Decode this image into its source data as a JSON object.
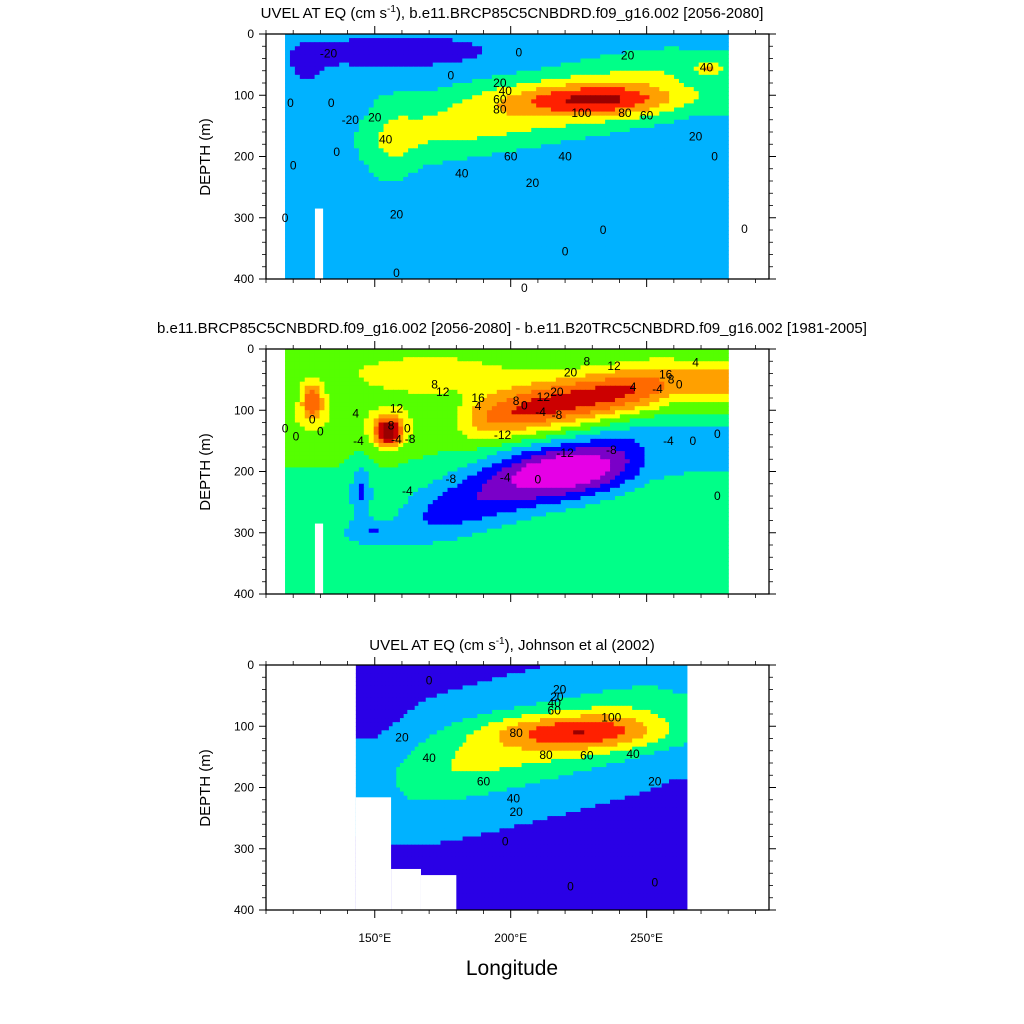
{
  "figure": {
    "xlabel": "Longitude",
    "ylabel": "DEPTH (m)",
    "xticks": [
      150,
      200,
      250
    ],
    "xtick_labels": [
      "150°E",
      "200°E",
      "250°E"
    ],
    "yticks": [
      0,
      100,
      200,
      300,
      400
    ],
    "ytick_labels": [
      "0",
      "100",
      "200",
      "300",
      "400"
    ]
  },
  "chart_data": [
    {
      "type": "heatmap",
      "id": "panel-model",
      "title_parts": [
        "UVEL AT EQ (cm s",
        "-1",
        "), b.e11.BRCP85C5CNBDRD.f09_g16.002 [2056-2080]"
      ],
      "xlabel": "",
      "ylabel": "DEPTH (m)",
      "xlim": [
        110,
        295
      ],
      "ylim": [
        400,
        0
      ],
      "data_xlim": [
        117,
        280
      ],
      "levels": [
        -20,
        0,
        20,
        40,
        60,
        80,
        100
      ],
      "features": [
        {
          "kind": "background",
          "value": 8
        },
        {
          "kind": "blob",
          "x": 210,
          "y": 230,
          "sx": 60,
          "sy": 80,
          "amp": -4
        },
        {
          "kind": "blob",
          "x": 160,
          "y": 30,
          "sx": 40,
          "sy": 30,
          "amp": -16
        },
        {
          "kind": "blob",
          "x": 125,
          "y": 60,
          "sx": 8,
          "sy": 40,
          "amp": -8
        },
        {
          "kind": "jet",
          "x0": 148,
          "y0": 175,
          "x1": 265,
          "y1": 75,
          "thick": 58,
          "amp": 46
        },
        {
          "kind": "blob",
          "x": 232,
          "y": 108,
          "sx": 30,
          "sy": 25,
          "amp": 55
        },
        {
          "kind": "blob",
          "x": 155,
          "y": 175,
          "sx": 10,
          "sy": 80,
          "amp": 20
        },
        {
          "kind": "blob",
          "x": 273,
          "y": 55,
          "sx": 4,
          "sy": 10,
          "amp": 40
        }
      ],
      "contour_labels": [
        {
          "x": 133,
          "y": 32,
          "t": "-20"
        },
        {
          "x": 203,
          "y": 30,
          "t": "0"
        },
        {
          "x": 243,
          "y": 35,
          "t": "20"
        },
        {
          "x": 178,
          "y": 68,
          "t": "0"
        },
        {
          "x": 196,
          "y": 80,
          "t": "20"
        },
        {
          "x": 198,
          "y": 93,
          "t": "40"
        },
        {
          "x": 196,
          "y": 107,
          "t": "60"
        },
        {
          "x": 196,
          "y": 123,
          "t": "80"
        },
        {
          "x": 226,
          "y": 129,
          "t": "100"
        },
        {
          "x": 242,
          "y": 129,
          "t": "80"
        },
        {
          "x": 250,
          "y": 133,
          "t": "60"
        },
        {
          "x": 119,
          "y": 113,
          "t": "0"
        },
        {
          "x": 134,
          "y": 113,
          "t": "0"
        },
        {
          "x": 141,
          "y": 140,
          "t": "-20"
        },
        {
          "x": 150,
          "y": 136,
          "t": "20"
        },
        {
          "x": 154,
          "y": 172,
          "t": "40"
        },
        {
          "x": 136,
          "y": 193,
          "t": "0"
        },
        {
          "x": 200,
          "y": 200,
          "t": "60"
        },
        {
          "x": 220,
          "y": 200,
          "t": "40"
        },
        {
          "x": 182,
          "y": 228,
          "t": "40"
        },
        {
          "x": 208,
          "y": 243,
          "t": "20"
        },
        {
          "x": 268,
          "y": 167,
          "t": "20"
        },
        {
          "x": 275,
          "y": 200,
          "t": "0"
        },
        {
          "x": 120,
          "y": 215,
          "t": "0"
        },
        {
          "x": 158,
          "y": 295,
          "t": "20"
        },
        {
          "x": 234,
          "y": 320,
          "t": "0"
        },
        {
          "x": 117,
          "y": 300,
          "t": "0"
        },
        {
          "x": 220,
          "y": 355,
          "t": "0"
        },
        {
          "x": 286,
          "y": 318,
          "t": "0"
        },
        {
          "x": 158,
          "y": 390,
          "t": "0"
        },
        {
          "x": 205,
          "y": 415,
          "t": "0"
        },
        {
          "x": 272,
          "y": 55,
          "t": "40"
        }
      ]
    },
    {
      "type": "heatmap",
      "id": "panel-diff",
      "title_parts": [
        "b.e11.BRCP85C5CNBDRD.f09_g16.002 [2056-2080] - b.e11.B20TRC5CNBDRD.f09_g16.002 [1981-2005]"
      ],
      "xlabel": "",
      "ylabel": "DEPTH (m)",
      "xlim": [
        110,
        295
      ],
      "ylim": [
        400,
        0
      ],
      "data_xlim": [
        117,
        280
      ],
      "levels": [
        -16,
        -12,
        -8,
        -4,
        0,
        4,
        8,
        12,
        16,
        20
      ],
      "features": [
        {
          "kind": "background",
          "value": 0
        },
        {
          "kind": "blob",
          "x": 170,
          "y": 40,
          "sx": 40,
          "sy": 40,
          "amp": 6
        },
        {
          "kind": "jet",
          "x0": 180,
          "y0": 120,
          "x1": 260,
          "y1": 55,
          "thick": 40,
          "amp": 18
        },
        {
          "kind": "blob",
          "x": 155,
          "y": 135,
          "sx": 5,
          "sy": 25,
          "amp": 22
        },
        {
          "kind": "jet",
          "x0": 155,
          "y0": 290,
          "x1": 250,
          "y1": 160,
          "thick": 55,
          "amp": -12
        },
        {
          "kind": "blob",
          "x": 220,
          "y": 200,
          "sx": 25,
          "sy": 40,
          "amp": -10
        },
        {
          "kind": "blob",
          "x": 150,
          "y": 300,
          "sx": 10,
          "sy": 20,
          "amp": -6
        },
        {
          "kind": "blob",
          "x": 127,
          "y": 85,
          "sx": 4,
          "sy": 30,
          "amp": 14
        },
        {
          "kind": "blob",
          "x": 145,
          "y": 230,
          "sx": 4,
          "sy": 40,
          "amp": -8
        }
      ],
      "contour_labels": [
        {
          "x": 228,
          "y": 20,
          "t": "8"
        },
        {
          "x": 238,
          "y": 28,
          "t": "12"
        },
        {
          "x": 268,
          "y": 22,
          "t": "4"
        },
        {
          "x": 222,
          "y": 38,
          "t": "20"
        },
        {
          "x": 257,
          "y": 42,
          "t": "16"
        },
        {
          "x": 259,
          "y": 50,
          "t": "8"
        },
        {
          "x": 262,
          "y": 58,
          "t": "0"
        },
        {
          "x": 172,
          "y": 58,
          "t": "8"
        },
        {
          "x": 175,
          "y": 70,
          "t": "12"
        },
        {
          "x": 217,
          "y": 70,
          "t": "20"
        },
        {
          "x": 245,
          "y": 62,
          "t": "4"
        },
        {
          "x": 254,
          "y": 65,
          "t": "-4"
        },
        {
          "x": 188,
          "y": 80,
          "t": "16"
        },
        {
          "x": 212,
          "y": 78,
          "t": "12"
        },
        {
          "x": 202,
          "y": 85,
          "t": "8"
        },
        {
          "x": 205,
          "y": 92,
          "t": "0"
        },
        {
          "x": 188,
          "y": 93,
          "t": "4"
        },
        {
          "x": 211,
          "y": 103,
          "t": "-4"
        },
        {
          "x": 217,
          "y": 108,
          "t": "-8"
        },
        {
          "x": 143,
          "y": 105,
          "t": "4"
        },
        {
          "x": 156,
          "y": 125,
          "t": "8"
        },
        {
          "x": 158,
          "y": 97,
          "t": "12"
        },
        {
          "x": 162,
          "y": 130,
          "t": "0"
        },
        {
          "x": 158,
          "y": 148,
          "t": "-4"
        },
        {
          "x": 163,
          "y": 147,
          "t": "-8"
        },
        {
          "x": 144,
          "y": 150,
          "t": "-4"
        },
        {
          "x": 127,
          "y": 115,
          "t": "0"
        },
        {
          "x": 130,
          "y": 135,
          "t": "0"
        },
        {
          "x": 121,
          "y": 143,
          "t": "0"
        },
        {
          "x": 117,
          "y": 130,
          "t": "0"
        },
        {
          "x": 197,
          "y": 140,
          "t": "-12"
        },
        {
          "x": 220,
          "y": 170,
          "t": "-12"
        },
        {
          "x": 237,
          "y": 165,
          "t": "-8"
        },
        {
          "x": 258,
          "y": 150,
          "t": "-4"
        },
        {
          "x": 267,
          "y": 150,
          "t": "0"
        },
        {
          "x": 276,
          "y": 139,
          "t": "0"
        },
        {
          "x": 178,
          "y": 212,
          "t": "-8"
        },
        {
          "x": 198,
          "y": 210,
          "t": "-4"
        },
        {
          "x": 210,
          "y": 213,
          "t": "0"
        },
        {
          "x": 162,
          "y": 232,
          "t": "-4"
        },
        {
          "x": 276,
          "y": 240,
          "t": "0"
        }
      ]
    },
    {
      "type": "heatmap",
      "id": "panel-obs",
      "title_parts": [
        "UVEL AT EQ (cm s",
        "-1",
        "), Johnson et al (2002)"
      ],
      "xlabel": "Longitude",
      "ylabel": "DEPTH (m)",
      "xlim": [
        110,
        295
      ],
      "ylim": [
        400,
        0
      ],
      "data_xlim": [
        143,
        265
      ],
      "levels": [
        -20,
        0,
        20,
        40,
        60,
        80,
        100
      ],
      "features": [
        {
          "kind": "background",
          "value": -2
        },
        {
          "kind": "blob",
          "x": 150,
          "y": 70,
          "sx": 10,
          "sy": 40,
          "amp": -6
        },
        {
          "kind": "jet",
          "x0": 150,
          "y0": 195,
          "x1": 260,
          "y1": 75,
          "thick": 70,
          "amp": 48
        },
        {
          "kind": "blob",
          "x": 225,
          "y": 110,
          "sx": 32,
          "sy": 28,
          "amp": 55
        }
      ],
      "contour_labels": [
        {
          "x": 170,
          "y": 25,
          "t": "0"
        },
        {
          "x": 218,
          "y": 40,
          "t": "20"
        },
        {
          "x": 217,
          "y": 52,
          "t": "20"
        },
        {
          "x": 216,
          "y": 62,
          "t": "40"
        },
        {
          "x": 216,
          "y": 74,
          "t": "60"
        },
        {
          "x": 237,
          "y": 86,
          "t": "100"
        },
        {
          "x": 202,
          "y": 111,
          "t": "80"
        },
        {
          "x": 160,
          "y": 118,
          "t": "20"
        },
        {
          "x": 170,
          "y": 152,
          "t": "40"
        },
        {
          "x": 190,
          "y": 190,
          "t": "60"
        },
        {
          "x": 213,
          "y": 147,
          "t": "80"
        },
        {
          "x": 228,
          "y": 148,
          "t": "60"
        },
        {
          "x": 245,
          "y": 145,
          "t": "40"
        },
        {
          "x": 253,
          "y": 190,
          "t": "20"
        },
        {
          "x": 201,
          "y": 218,
          "t": "40"
        },
        {
          "x": 202,
          "y": 240,
          "t": "20"
        },
        {
          "x": 198,
          "y": 288,
          "t": "0"
        },
        {
          "x": 222,
          "y": 362,
          "t": "0"
        },
        {
          "x": 253,
          "y": 355,
          "t": "0"
        }
      ],
      "missing_rects": [
        {
          "x0": 110,
          "y0": 0,
          "x1": 143,
          "y1": 400
        },
        {
          "x0": 143,
          "y0": 216,
          "x1": 156,
          "y1": 400
        },
        {
          "x0": 156,
          "y0": 333,
          "x1": 167,
          "y1": 400
        },
        {
          "x0": 167,
          "y0": 343,
          "x1": 180,
          "y1": 400
        },
        {
          "x0": 265,
          "y0": 0,
          "x1": 295,
          "y1": 400
        }
      ]
    }
  ],
  "colors": {
    "fill_min": "#ff00ff",
    "ramp": [
      "#e600e6",
      "#7a00c8",
      "#2a00e6",
      "#0000ff",
      "#00b2ff",
      "#00ffff",
      "#00ff88",
      "#55ff00",
      "#ffff00",
      "#ffcc44",
      "#ffa000",
      "#ff6a00",
      "#ff2000",
      "#cc0000",
      "#990000"
    ]
  }
}
